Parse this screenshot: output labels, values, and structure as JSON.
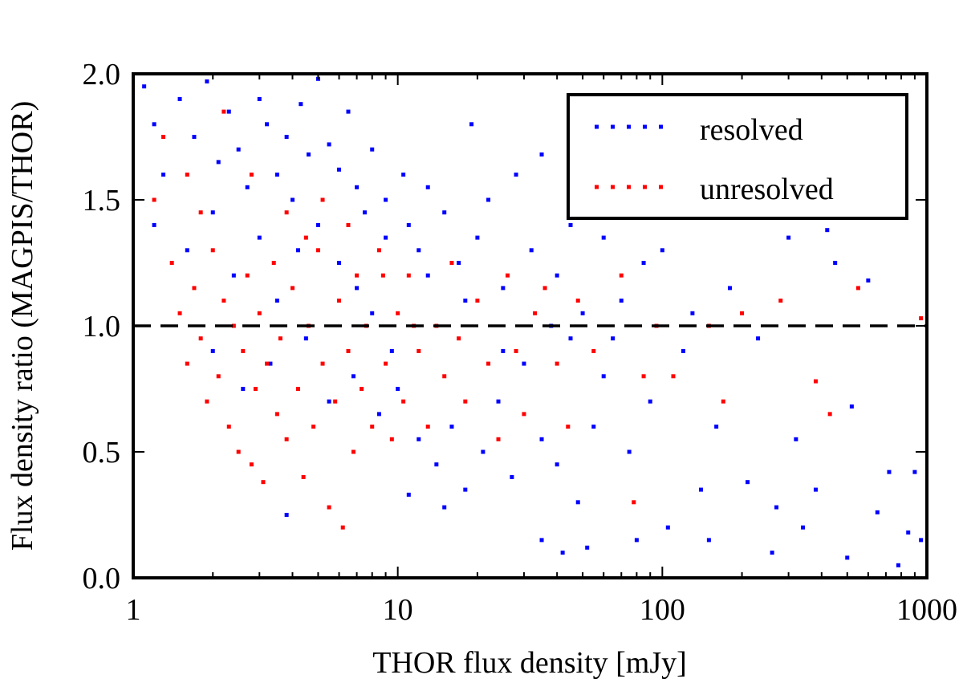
{
  "chart_data": {
    "type": "scatter",
    "title": "",
    "xlabel": "THOR flux density [mJy]",
    "ylabel": "Flux density ratio (MAGPIS/THOR)",
    "xscale": "log",
    "xlim": [
      1,
      1000
    ],
    "ylim": [
      0.0,
      2.0
    ],
    "xticks": [
      "1",
      "10",
      "100",
      "1000"
    ],
    "xtick_values": [
      1,
      10,
      100,
      1000
    ],
    "yticks": [
      "0.0",
      "0.5",
      "1.0",
      "1.5",
      "2.0"
    ],
    "ytick_values": [
      0,
      0.5,
      1.0,
      1.5,
      2.0
    ],
    "grid": false,
    "legend": {
      "placement": "top-right",
      "entries": [
        "resolved",
        "unresolved"
      ]
    },
    "reference_line": {
      "y": 1.0,
      "style": "dashed",
      "color": "#000000"
    },
    "series": [
      {
        "name": "resolved",
        "color": "#0000ff",
        "points": [
          [
            1.1,
            1.95
          ],
          [
            1.2,
            1.8
          ],
          [
            1.3,
            1.6
          ],
          [
            1.5,
            1.9
          ],
          [
            1.7,
            1.75
          ],
          [
            1.9,
            1.97
          ],
          [
            2.1,
            1.65
          ],
          [
            2.3,
            1.85
          ],
          [
            2.5,
            1.7
          ],
          [
            2.7,
            1.55
          ],
          [
            3.0,
            1.9
          ],
          [
            3.2,
            1.8
          ],
          [
            3.5,
            1.6
          ],
          [
            3.8,
            1.75
          ],
          [
            4.0,
            1.5
          ],
          [
            4.3,
            1.88
          ],
          [
            4.6,
            1.68
          ],
          [
            5.0,
            1.98
          ],
          [
            5.5,
            1.72
          ],
          [
            6.0,
            1.62
          ],
          [
            6.5,
            1.85
          ],
          [
            7.0,
            1.55
          ],
          [
            7.5,
            1.45
          ],
          [
            8.0,
            1.7
          ],
          [
            9.0,
            1.5
          ],
          [
            10.5,
            1.6
          ],
          [
            11,
            1.4
          ],
          [
            12,
            1.3
          ],
          [
            13,
            1.55
          ],
          [
            15,
            1.45
          ],
          [
            17,
            1.25
          ],
          [
            19,
            1.8
          ],
          [
            20,
            1.35
          ],
          [
            22,
            1.5
          ],
          [
            25,
            1.15
          ],
          [
            28,
            1.6
          ],
          [
            32,
            1.3
          ],
          [
            35,
            1.68
          ],
          [
            40,
            1.2
          ],
          [
            45,
            1.4
          ],
          [
            1.2,
            1.4
          ],
          [
            1.6,
            1.3
          ],
          [
            2.0,
            1.45
          ],
          [
            2.4,
            1.2
          ],
          [
            3.0,
            1.35
          ],
          [
            3.5,
            1.1
          ],
          [
            4.2,
            1.3
          ],
          [
            5.0,
            1.4
          ],
          [
            6.0,
            1.25
          ],
          [
            7.0,
            1.15
          ],
          [
            2.0,
            0.9
          ],
          [
            2.6,
            0.75
          ],
          [
            3.3,
            0.85
          ],
          [
            4.5,
            0.95
          ],
          [
            5.5,
            0.7
          ],
          [
            6.8,
            0.8
          ],
          [
            8.5,
            0.65
          ],
          [
            10,
            0.75
          ],
          [
            12,
            0.55
          ],
          [
            14,
            0.45
          ],
          [
            16,
            0.6
          ],
          [
            18,
            0.35
          ],
          [
            21,
            0.5
          ],
          [
            24,
            0.7
          ],
          [
            27,
            0.4
          ],
          [
            30,
            0.85
          ],
          [
            35,
            0.55
          ],
          [
            40,
            0.45
          ],
          [
            48,
            0.3
          ],
          [
            55,
            0.6
          ],
          [
            3.8,
            0.25
          ],
          [
            11,
            0.33
          ],
          [
            15,
            0.28
          ],
          [
            35,
            0.15
          ],
          [
            42,
            0.1
          ],
          [
            52,
            0.12
          ],
          [
            60,
            0.8
          ],
          [
            65,
            0.95
          ],
          [
            70,
            1.1
          ],
          [
            75,
            0.5
          ],
          [
            80,
            0.15
          ],
          [
            85,
            1.25
          ],
          [
            90,
            0.7
          ],
          [
            100,
            1.3
          ],
          [
            105,
            0.2
          ],
          [
            120,
            0.9
          ],
          [
            130,
            1.05
          ],
          [
            140,
            0.35
          ],
          [
            150,
            0.15
          ],
          [
            160,
            0.6
          ],
          [
            180,
            1.15
          ],
          [
            210,
            0.38
          ],
          [
            230,
            0.95
          ],
          [
            260,
            0.1
          ],
          [
            270,
            0.28
          ],
          [
            300,
            1.35
          ],
          [
            320,
            0.55
          ],
          [
            340,
            0.2
          ],
          [
            380,
            0.35
          ],
          [
            420,
            1.38
          ],
          [
            450,
            1.25
          ],
          [
            500,
            0.08
          ],
          [
            520,
            0.68
          ],
          [
            600,
            1.18
          ],
          [
            650,
            0.26
          ],
          [
            720,
            0.42
          ],
          [
            780,
            0.05
          ],
          [
            850,
            0.18
          ],
          [
            900,
            0.42
          ],
          [
            950,
            0.15
          ],
          [
            60,
            1.35
          ],
          [
            50,
            1.05
          ],
          [
            45,
            0.95
          ],
          [
            38,
            1.0
          ],
          [
            25,
            0.9
          ],
          [
            18,
            1.1
          ],
          [
            13,
            1.2
          ],
          [
            9,
            1.35
          ],
          [
            8,
            1.05
          ],
          [
            9.5,
            0.9
          ]
        ]
      },
      {
        "name": "unresolved",
        "color": "#ff0000",
        "points": [
          [
            1.2,
            1.5
          ],
          [
            1.3,
            1.75
          ],
          [
            1.4,
            1.25
          ],
          [
            1.5,
            1.05
          ],
          [
            1.6,
            0.85
          ],
          [
            1.7,
            1.15
          ],
          [
            1.8,
            0.95
          ],
          [
            1.9,
            0.7
          ],
          [
            2.0,
            1.3
          ],
          [
            2.1,
            0.8
          ],
          [
            2.2,
            1.1
          ],
          [
            2.3,
            0.6
          ],
          [
            2.4,
            1.0
          ],
          [
            2.5,
            0.5
          ],
          [
            2.6,
            0.9
          ],
          [
            2.7,
            1.2
          ],
          [
            2.8,
            0.45
          ],
          [
            2.9,
            0.75
          ],
          [
            3.0,
            1.05
          ],
          [
            3.1,
            0.38
          ],
          [
            3.2,
            0.85
          ],
          [
            3.4,
            1.25
          ],
          [
            3.5,
            0.65
          ],
          [
            3.6,
            0.95
          ],
          [
            3.8,
            0.55
          ],
          [
            4.0,
            1.15
          ],
          [
            4.2,
            0.75
          ],
          [
            4.4,
            0.4
          ],
          [
            4.6,
            1.0
          ],
          [
            4.8,
            0.6
          ],
          [
            5.0,
            1.3
          ],
          [
            5.2,
            0.85
          ],
          [
            5.5,
            0.28
          ],
          [
            5.8,
            0.7
          ],
          [
            6.0,
            1.1
          ],
          [
            6.2,
            0.2
          ],
          [
            6.5,
            0.9
          ],
          [
            6.8,
            0.5
          ],
          [
            7.0,
            1.2
          ],
          [
            7.3,
            0.75
          ],
          [
            7.6,
            1.0
          ],
          [
            8.0,
            0.6
          ],
          [
            8.5,
            1.3
          ],
          [
            9.0,
            0.85
          ],
          [
            9.5,
            0.55
          ],
          [
            10,
            1.05
          ],
          [
            10.5,
            0.7
          ],
          [
            11,
            1.2
          ],
          [
            12,
            0.9
          ],
          [
            13,
            0.6
          ],
          [
            14,
            1.0
          ],
          [
            15,
            0.8
          ],
          [
            16,
            1.25
          ],
          [
            17,
            0.95
          ],
          [
            18,
            0.7
          ],
          [
            20,
            1.1
          ],
          [
            22,
            0.85
          ],
          [
            24,
            0.55
          ],
          [
            26,
            1.2
          ],
          [
            28,
            0.9
          ],
          [
            30,
            0.65
          ],
          [
            33,
            1.05
          ],
          [
            36,
            1.15
          ],
          [
            40,
            0.85
          ],
          [
            44,
            0.6
          ],
          [
            48,
            1.1
          ],
          [
            55,
            0.9
          ],
          [
            70,
            1.2
          ],
          [
            78,
            0.3
          ],
          [
            85,
            0.8
          ],
          [
            95,
            1.0
          ],
          [
            110,
            0.8
          ],
          [
            150,
            1.0
          ],
          [
            170,
            0.7
          ],
          [
            200,
            1.05
          ],
          [
            280,
            1.1
          ],
          [
            380,
            0.78
          ],
          [
            430,
            0.65
          ],
          [
            550,
            1.15
          ],
          [
            950,
            1.03
          ],
          [
            1.8,
            1.45
          ],
          [
            2.8,
            1.6
          ],
          [
            3.8,
            1.45
          ],
          [
            5.2,
            1.5
          ],
          [
            6.5,
            1.4
          ],
          [
            2.2,
            1.85
          ],
          [
            1.6,
            1.6
          ],
          [
            4.5,
            1.35
          ],
          [
            8.8,
            1.2
          ],
          [
            11.5,
            1.0
          ]
        ]
      }
    ]
  }
}
